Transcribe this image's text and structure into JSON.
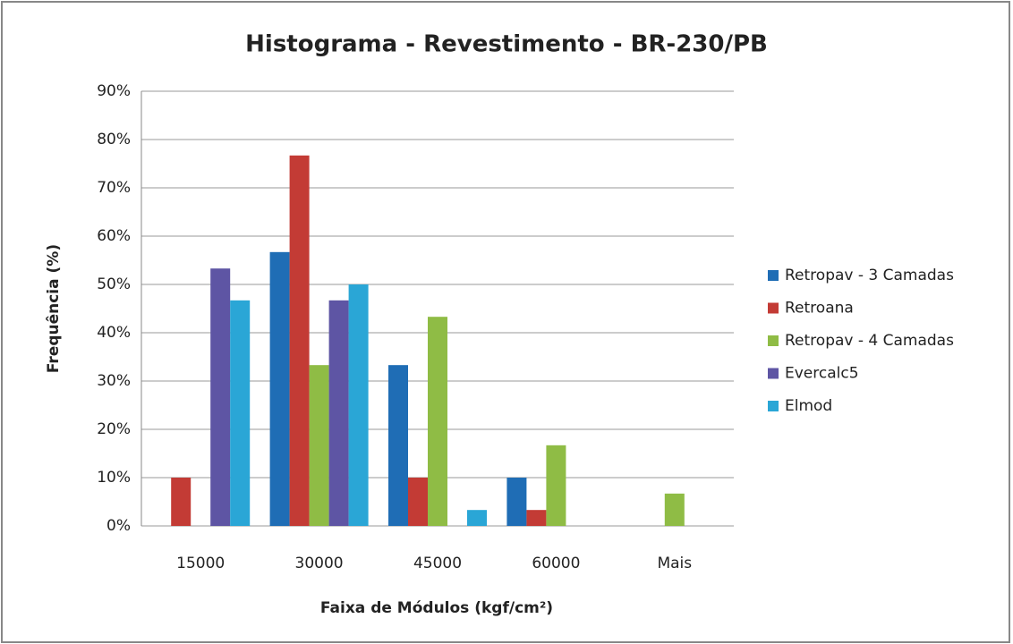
{
  "chart_data": {
    "type": "bar",
    "title": "Histograma - Revestimento - BR-230/PB",
    "x_label": "Faixa de Módulos (kgf/cm²)",
    "y_label": "Frequência (%)",
    "categories": [
      "15000",
      "30000",
      "45000",
      "60000",
      "Mais"
    ],
    "series": [
      {
        "name": "Retropav - 3 Camadas",
        "color": "#1f6db5",
        "values": [
          0,
          56.7,
          33.3,
          10,
          0
        ]
      },
      {
        "name": "Retroana",
        "color": "#c33b35",
        "values": [
          10,
          76.7,
          10,
          3.3,
          0
        ]
      },
      {
        "name": "Retropav - 4 Camadas",
        "color": "#8fbc45",
        "values": [
          0,
          33.3,
          43.3,
          16.7,
          6.7
        ]
      },
      {
        "name": "Evercalc5",
        "color": "#5e55a4",
        "values": [
          53.3,
          46.7,
          0,
          0,
          0
        ]
      },
      {
        "name": "Elmod",
        "color": "#2aa6d6",
        "values": [
          46.7,
          50,
          3.3,
          0,
          0
        ]
      }
    ],
    "ylim": [
      0,
      90
    ],
    "yticks": [
      {
        "value": 0,
        "label": "0%"
      },
      {
        "value": 10,
        "label": "10%"
      },
      {
        "value": 20,
        "label": "20%"
      },
      {
        "value": 30,
        "label": "30%"
      },
      {
        "value": 40,
        "label": "40%"
      },
      {
        "value": 50,
        "label": "50%"
      },
      {
        "value": 60,
        "label": "60%"
      },
      {
        "value": 70,
        "label": "70%"
      },
      {
        "value": 80,
        "label": "80%"
      },
      {
        "value": 90,
        "label": "90%"
      }
    ],
    "grid": true,
    "legend": "right"
  }
}
